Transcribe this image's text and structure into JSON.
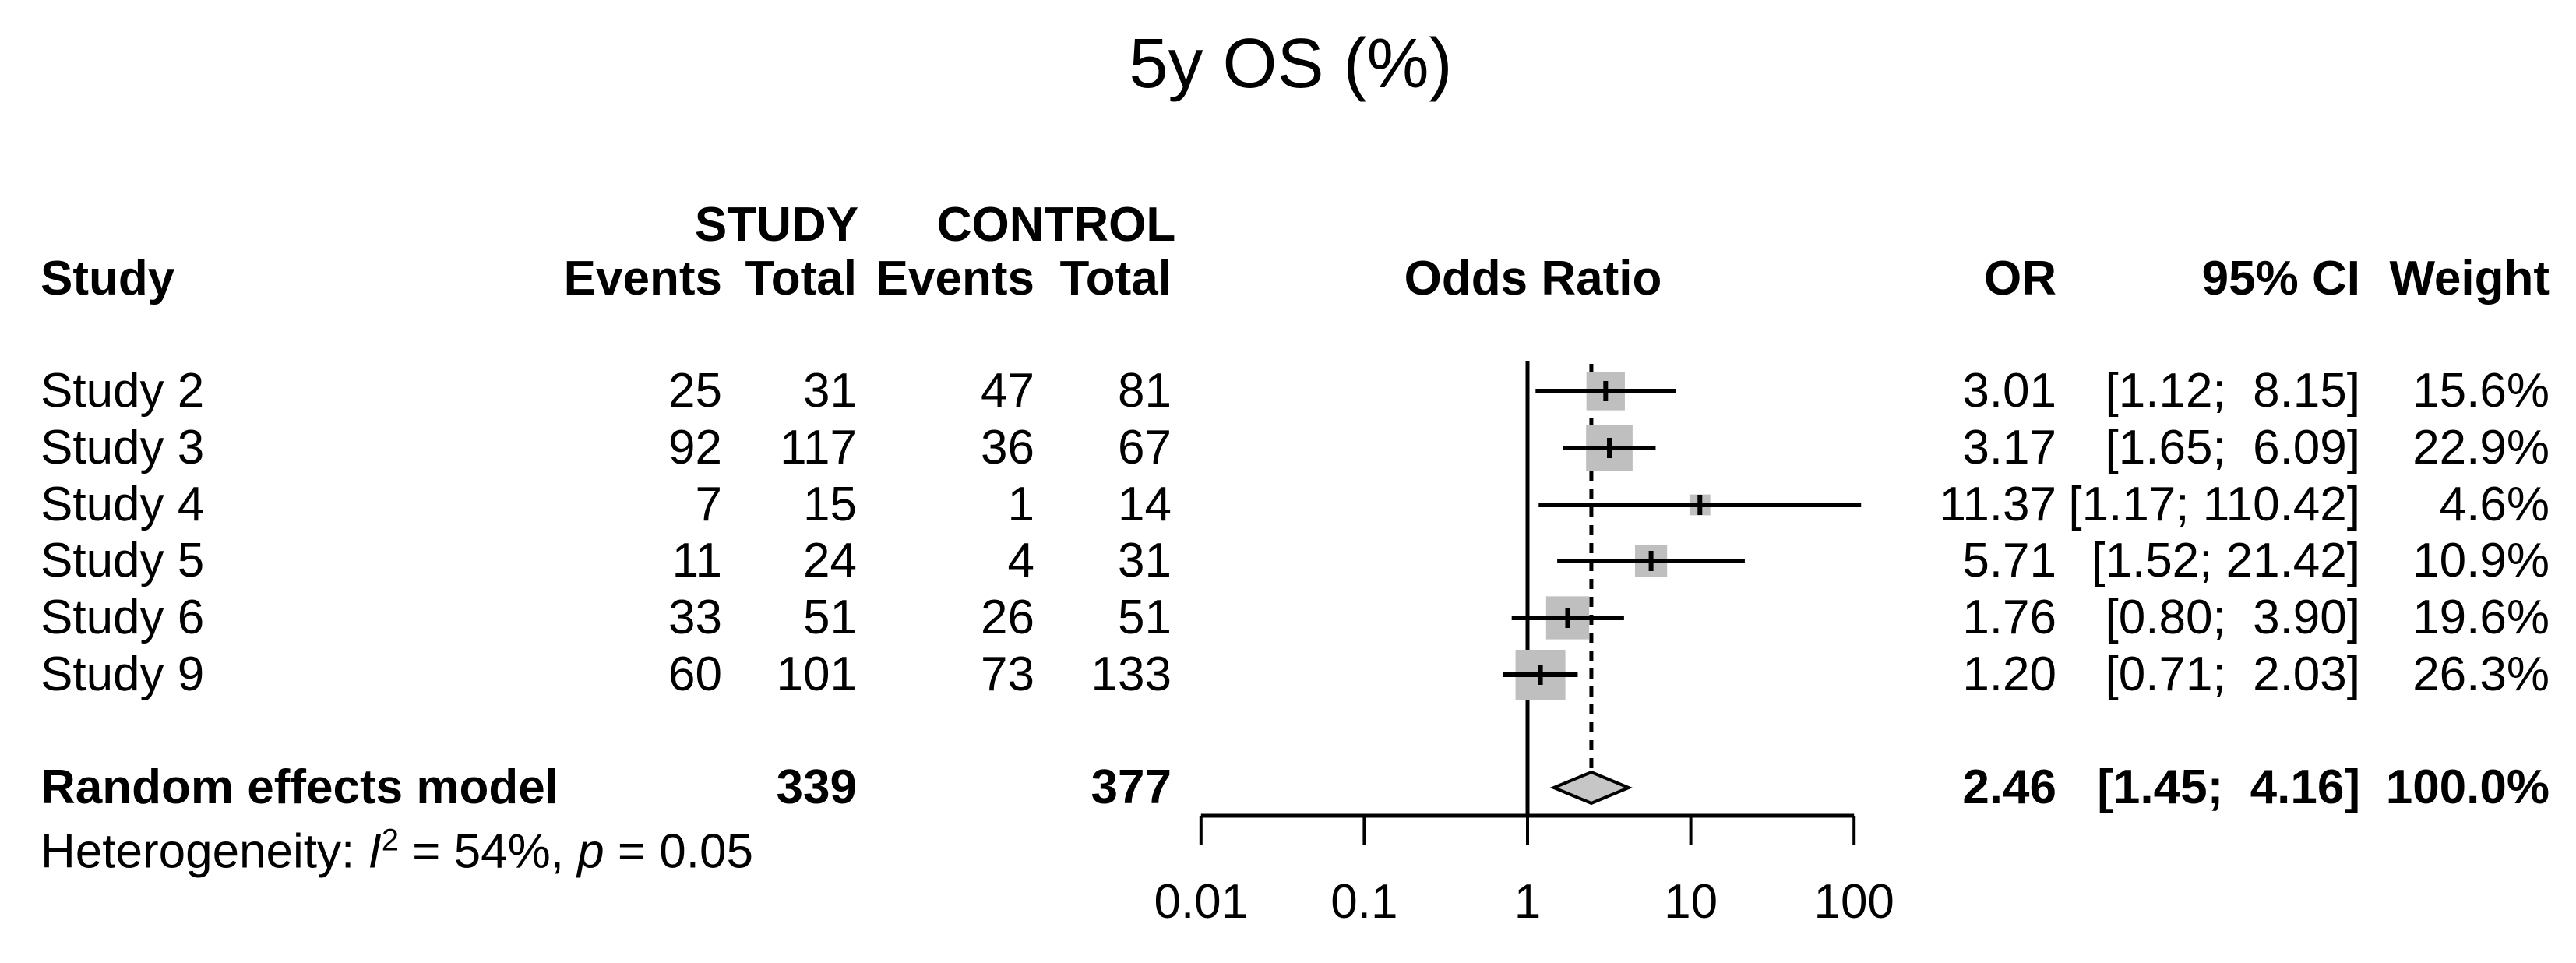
{
  "title": "5y OS (%)",
  "colors": {
    "background": "#ffffff",
    "text": "#000000",
    "line": "#000000",
    "square": "#bfbfbf",
    "diamond": "#c6c6c6"
  },
  "header": {
    "study": "Study",
    "group_study": "STUDY",
    "group_control": "CONTROL",
    "sub": [
      "Events",
      "Total",
      "Events",
      "Total"
    ],
    "plot": "Odds Ratio",
    "or": "OR",
    "ci": "95% CI",
    "weight": "Weight"
  },
  "rows": [
    {
      "label": "Study 2",
      "e1": "25",
      "t1": "31",
      "e2": "47",
      "t2": "81",
      "or": "3.01",
      "ci": "[1.12;  8.15]",
      "weight": "15.6%"
    },
    {
      "label": "Study 3",
      "e1": "92",
      "t1": "117",
      "e2": "36",
      "t2": "67",
      "or": "3.17",
      "ci": "[1.65;  6.09]",
      "weight": "22.9%"
    },
    {
      "label": "Study 4",
      "e1": "7",
      "t1": "15",
      "e2": "1",
      "t2": "14",
      "or": "11.37",
      "ci": "[1.17; 110.42]",
      "weight": "4.6%"
    },
    {
      "label": "Study 5",
      "e1": "11",
      "t1": "24",
      "e2": "4",
      "t2": "31",
      "or": "5.71",
      "ci": "[1.52; 21.42]",
      "weight": "10.9%"
    },
    {
      "label": "Study 6",
      "e1": "33",
      "t1": "51",
      "e2": "26",
      "t2": "51",
      "or": "1.76",
      "ci": "[0.80;  3.90]",
      "weight": "19.6%"
    },
    {
      "label": "Study 9",
      "e1": "60",
      "t1": "101",
      "e2": "73",
      "t2": "133",
      "or": "1.20",
      "ci": "[0.71;  2.03]",
      "weight": "26.3%"
    }
  ],
  "summary": {
    "label": "Random effects model",
    "t1": "339",
    "t2": "377",
    "or": "2.46",
    "ci": "[1.45;  4.16]",
    "weight": "100.0%"
  },
  "heterogeneity": {
    "prefix": "Heterogeneity: ",
    "stat": "I",
    "sup": "2",
    "mid": " = 54%, ",
    "p": "p",
    "suffix": " = 0.05"
  },
  "axis_labels": [
    "0.01",
    "0.1",
    "1",
    "10",
    "100"
  ],
  "chart_data": {
    "type": "forest",
    "title": "5y OS (%)",
    "effect_measure": "OR",
    "x_axis": {
      "scale": "log10",
      "ticks": [
        0.01,
        0.1,
        1,
        10,
        100
      ],
      "reference_line": 1,
      "pooled_dashed_line": 2.46
    },
    "studies": [
      {
        "label": "Study 2",
        "study_events": 25,
        "study_total": 31,
        "control_events": 47,
        "control_total": 81,
        "or": 3.01,
        "ci_low": 1.12,
        "ci_high": 8.15,
        "weight_pct": 15.6
      },
      {
        "label": "Study 3",
        "study_events": 92,
        "study_total": 117,
        "control_events": 36,
        "control_total": 67,
        "or": 3.17,
        "ci_low": 1.65,
        "ci_high": 6.09,
        "weight_pct": 22.9
      },
      {
        "label": "Study 4",
        "study_events": 7,
        "study_total": 15,
        "control_events": 1,
        "control_total": 14,
        "or": 11.37,
        "ci_low": 1.17,
        "ci_high": 110.42,
        "weight_pct": 4.6
      },
      {
        "label": "Study 5",
        "study_events": 11,
        "study_total": 24,
        "control_events": 4,
        "control_total": 31,
        "or": 5.71,
        "ci_low": 1.52,
        "ci_high": 21.42,
        "weight_pct": 10.9
      },
      {
        "label": "Study 6",
        "study_events": 33,
        "study_total": 51,
        "control_events": 26,
        "control_total": 51,
        "or": 1.76,
        "ci_low": 0.8,
        "ci_high": 3.9,
        "weight_pct": 19.6
      },
      {
        "label": "Study 9",
        "study_events": 60,
        "study_total": 101,
        "control_events": 73,
        "control_total": 133,
        "or": 1.2,
        "ci_low": 0.71,
        "ci_high": 2.03,
        "weight_pct": 26.3
      }
    ],
    "pooled": {
      "label": "Random effects model",
      "model": "random",
      "study_total": 339,
      "control_total": 377,
      "or": 2.46,
      "ci_low": 1.45,
      "ci_high": 4.16,
      "weight_pct": 100.0
    },
    "heterogeneity": {
      "I2_pct": 54,
      "p_value": 0.05
    }
  }
}
